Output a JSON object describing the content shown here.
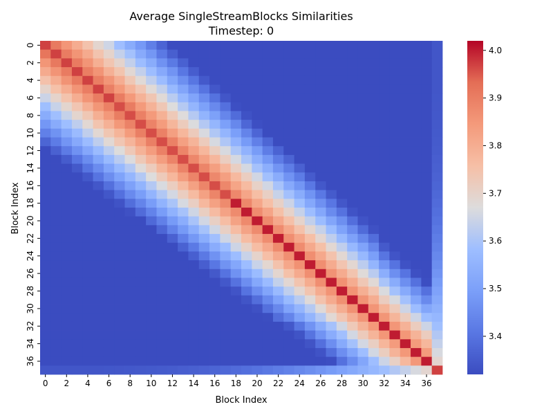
{
  "chart_data": {
    "type": "heatmap",
    "title": "Average SingleStreamBlocks Similarities",
    "subtitle": "Timestep: 0",
    "xlabel": "Block Index",
    "ylabel": "Block Index",
    "n": 38,
    "x_tick_labels": [
      "0",
      "2",
      "4",
      "6",
      "8",
      "10",
      "12",
      "14",
      "16",
      "18",
      "20",
      "22",
      "24",
      "26",
      "28",
      "30",
      "32",
      "34",
      "36"
    ],
    "y_tick_labels": [
      "0",
      "2",
      "4",
      "6",
      "8",
      "10",
      "12",
      "14",
      "16",
      "18",
      "20",
      "22",
      "24",
      "26",
      "28",
      "30",
      "32",
      "34",
      "36"
    ],
    "colorbar": {
      "colormap": "coolwarm",
      "vmin": 3.32,
      "vmax": 4.02,
      "tick_labels": [
        "3.4",
        "3.5",
        "3.6",
        "3.7",
        "3.8",
        "3.9",
        "4.0"
      ]
    }
  }
}
